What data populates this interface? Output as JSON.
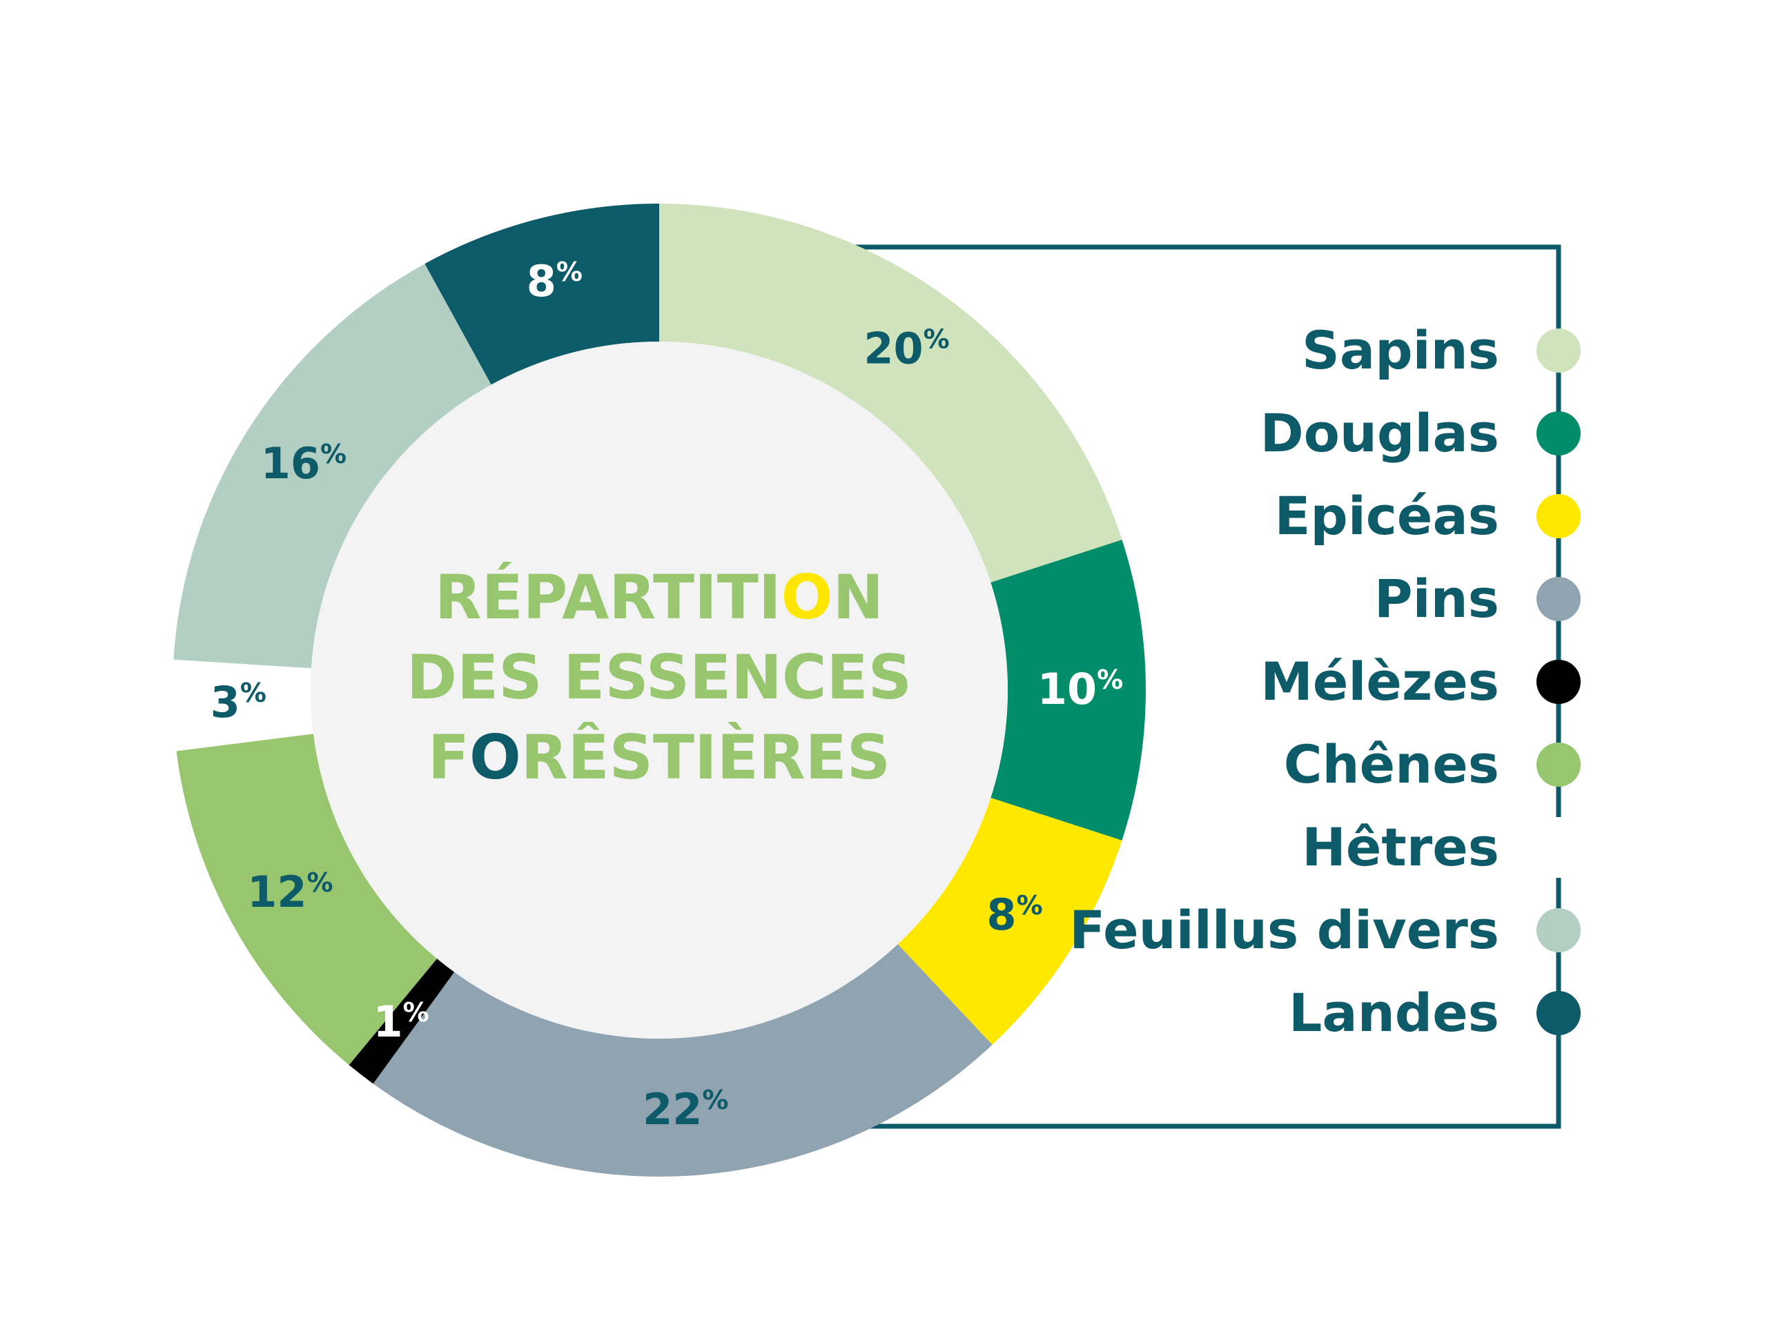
{
  "chart_data": {
    "type": "pie",
    "title_lines": [
      [
        {
          "text": "RÉPARTITI",
          "color": "#97c66e"
        },
        {
          "text": "O",
          "color": "#ffe600"
        },
        {
          "text": "N",
          "color": "#97c66e"
        }
      ],
      [
        {
          "text": "DES ESSENCES",
          "color": "#97c66e"
        }
      ],
      [
        {
          "text": "F",
          "color": "#97c66e"
        },
        {
          "text": "O",
          "color": "#0d5a68"
        },
        {
          "text": "RÊSTIÈRES",
          "color": "#97c66e"
        }
      ]
    ],
    "slices": [
      {
        "name": "Sapins",
        "value": 20,
        "label": "20",
        "color": "#cfe3bc",
        "label_color": "#0d5a68"
      },
      {
        "name": "Douglas",
        "value": 10,
        "label": "10",
        "color": "#028d6a",
        "label_color": "#ffffff"
      },
      {
        "name": "Epicéas",
        "value": 8,
        "label": "8",
        "color": "#ffe800",
        "label_color": "#0d5a68"
      },
      {
        "name": "Pins",
        "value": 22,
        "label": "22",
        "color": "#8fa3b0",
        "label_color": "#0d5a68"
      },
      {
        "name": "Mélèzes",
        "value": 1,
        "label": "1",
        "color": "#000000",
        "label_color": "#ffffff"
      },
      {
        "name": "Chênes",
        "value": 12,
        "label": "12",
        "color": "#97c66e",
        "label_color": "#0d5a68"
      },
      {
        "name": "Hêtres",
        "value": 3,
        "label": "3",
        "color": "#ffffff",
        "label_color": "#0d5a68"
      },
      {
        "name": "Feuillus divers",
        "value": 16,
        "label": "16",
        "color": "#b3cfc3",
        "label_color": "#0d5a68"
      },
      {
        "name": "Landes",
        "value": 8,
        "label": "8",
        "color": "#0d5a68",
        "label_color": "#ffffff"
      }
    ],
    "percent_sign": "%",
    "center_color": "#f3f3f3",
    "frame_color": "#0d5a68"
  }
}
